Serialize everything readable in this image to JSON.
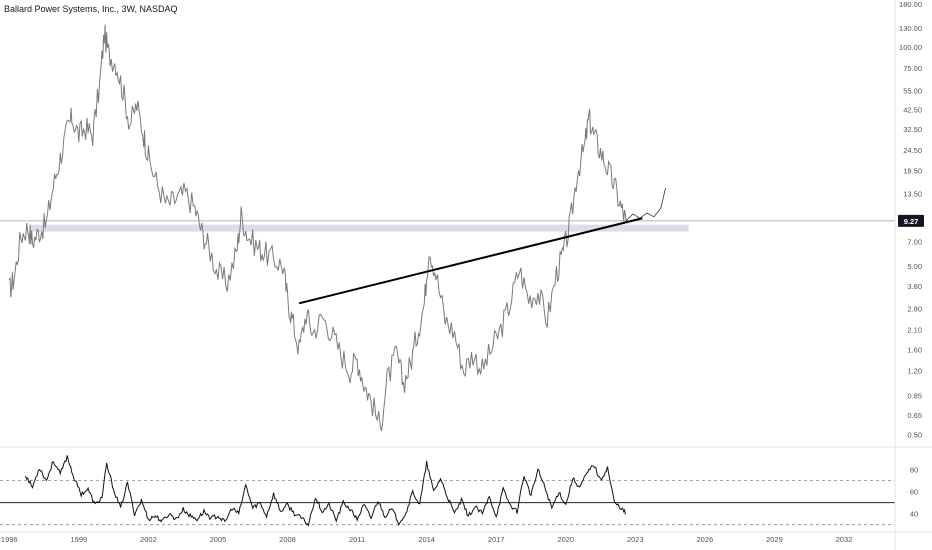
{
  "title": "Ballard Power Systems, Inc., 3W, NASDAQ",
  "price_label": "9.27",
  "colors": {
    "price": "#7a7a7a",
    "trendline": "#000000",
    "projection": "#333333",
    "zone": "#dcdde6",
    "price_line": "#9598a1",
    "label_bg": "#131722",
    "indicator": "#111111",
    "grid": "#e0e3eb"
  },
  "chart_data": [
    {
      "type": "line",
      "title": "Ballard Power Systems, Inc., 3W, NASDAQ",
      "y_scale": "log",
      "ylim": [
        0.45,
        180
      ],
      "xlim": [
        1995.6,
        2034.2
      ],
      "y_ticks": [
        "180.00",
        "130.00",
        "100.00",
        "75.00",
        "55.00",
        "42.50",
        "32.50",
        "24.50",
        "18.50",
        "13.50",
        "9.27",
        "7.00",
        "5.00",
        "3.80",
        "2.80",
        "2.10",
        "1.60",
        "1.20",
        "0.85",
        "0.65",
        "0.50"
      ],
      "x_ticks": [
        "1996",
        "1999",
        "2002",
        "2005",
        "2008",
        "2011",
        "2014",
        "2017",
        "2020",
        "2023",
        "2026",
        "2029",
        "2032"
      ],
      "last_price": 9.27,
      "series": [
        {
          "x": [
            1996.0,
            1996.2,
            1996.5,
            1996.8,
            1997.0,
            1997.3,
            1997.6,
            1997.9,
            1998.2,
            1998.5,
            1998.7,
            1999.0,
            1999.3,
            1999.6,
            1999.9,
            2000.1,
            2000.3,
            2000.6,
            2000.9,
            2001.2,
            2001.5,
            2001.8,
            2002.0,
            2002.4,
            2002.8,
            2003.2,
            2003.6,
            2004.0,
            2004.3,
            2004.6,
            2005.0,
            2005.4,
            2005.8,
            2006.0,
            2006.3,
            2006.7,
            2007.0,
            2007.4,
            2007.8,
            2008.0,
            2008.2,
            2008.5,
            2008.8,
            2009.1,
            2009.5,
            2009.9,
            2010.3,
            2010.7,
            2011.0,
            2011.3,
            2011.6,
            2012.0,
            2012.3,
            2012.7,
            2013.0,
            2013.3,
            2013.6,
            2013.9,
            2014.1,
            2014.4,
            2014.8,
            2015.2,
            2015.6,
            2016.0,
            2016.4,
            2016.8,
            2017.2,
            2017.6,
            2018.0,
            2018.4,
            2018.8,
            2019.2,
            2019.6,
            2019.9,
            2020.2,
            2020.5,
            2020.8,
            2021.0,
            2021.2,
            2021.5,
            2021.8,
            2022.1,
            2022.4,
            2022.6
          ],
          "y": [
            3.6,
            4.2,
            7.5,
            8.5,
            7.0,
            8.0,
            9.0,
            15.0,
            22.0,
            32.0,
            38.0,
            30.0,
            33.0,
            30.0,
            60.0,
            120.0,
            90.0,
            80.0,
            55.0,
            35.0,
            45.0,
            30.0,
            22.0,
            15.0,
            11.5,
            12.5,
            13.5,
            11.0,
            8.0,
            6.5,
            4.5,
            4.0,
            6.0,
            10.0,
            7.5,
            6.5,
            6.0,
            5.5,
            5.0,
            3.2,
            2.4,
            1.6,
            2.6,
            2.0,
            2.5,
            2.0,
            1.5,
            1.2,
            1.4,
            1.0,
            0.8,
            0.55,
            1.05,
            1.5,
            1.0,
            1.3,
            2.0,
            3.0,
            6.5,
            4.5,
            2.4,
            2.0,
            1.2,
            1.5,
            1.2,
            1.6,
            2.1,
            3.0,
            4.8,
            3.2,
            3.5,
            2.4,
            4.5,
            6.0,
            9.0,
            18.0,
            25.0,
            38.0,
            30.0,
            24.0,
            19.0,
            15.0,
            11.0,
            9.27
          ]
        },
        {
          "name": "",
          "x": [
            2022.6,
            2022.9,
            2023.2,
            2023.5,
            2023.8,
            2024.1,
            2024.3
          ],
          "y": [
            9.27,
            10.2,
            9.6,
            10.3,
            9.8,
            11.0,
            14.5
          ]
        }
      ],
      "trendline": {
        "x": [
          2008.5,
          2023.3
        ],
        "y": [
          3.0,
          9.6
        ]
      },
      "support_zone": {
        "x": [
          1996.9,
          2025.3
        ],
        "y": [
          8.0,
          8.8
        ]
      }
    },
    {
      "type": "line",
      "ylim": [
        27,
        96
      ],
      "y_ticks": [
        "80",
        "60",
        "40"
      ],
      "levels": [
        70,
        50,
        30
      ],
      "series": [
        {
          "x": [
            1996.7,
            1997.0,
            1997.3,
            1997.6,
            1997.9,
            1998.2,
            1998.5,
            1998.8,
            1999.1,
            1999.4,
            1999.7,
            2000.0,
            2000.2,
            2000.5,
            2000.8,
            2001.1,
            2001.4,
            2001.7,
            2002.0,
            2002.3,
            2002.6,
            2002.9,
            2003.2,
            2003.5,
            2003.8,
            2004.1,
            2004.4,
            2004.7,
            2005.0,
            2005.3,
            2005.6,
            2005.9,
            2006.2,
            2006.5,
            2006.8,
            2007.1,
            2007.4,
            2007.7,
            2008.0,
            2008.3,
            2008.6,
            2008.9,
            2009.2,
            2009.5,
            2009.8,
            2010.1,
            2010.4,
            2010.7,
            2011.0,
            2011.3,
            2011.6,
            2011.9,
            2012.2,
            2012.5,
            2012.8,
            2013.1,
            2013.4,
            2013.7,
            2014.0,
            2014.3,
            2014.6,
            2014.9,
            2015.2,
            2015.5,
            2015.8,
            2016.1,
            2016.4,
            2016.7,
            2017.0,
            2017.3,
            2017.6,
            2017.9,
            2018.2,
            2018.5,
            2018.8,
            2019.1,
            2019.4,
            2019.7,
            2020.0,
            2020.3,
            2020.6,
            2020.9,
            2021.2,
            2021.5,
            2021.8,
            2022.1,
            2022.4,
            2022.6
          ],
          "y": [
            75,
            64,
            82,
            70,
            88,
            76,
            92,
            72,
            58,
            62,
            48,
            55,
            85,
            62,
            45,
            68,
            40,
            52,
            35,
            38,
            33,
            40,
            35,
            44,
            38,
            35,
            42,
            36,
            38,
            32,
            45,
            40,
            66,
            45,
            50,
            38,
            58,
            42,
            48,
            40,
            36,
            30,
            55,
            42,
            48,
            34,
            50,
            44,
            35,
            48,
            36,
            52,
            38,
            44,
            32,
            40,
            60,
            48,
            86,
            60,
            72,
            55,
            40,
            52,
            38,
            46,
            40,
            55,
            38,
            62,
            48,
            42,
            75,
            56,
            80,
            64,
            45,
            60,
            48,
            72,
            64,
            76,
            85,
            70,
            82,
            50,
            45,
            40
          ]
        }
      ]
    }
  ]
}
